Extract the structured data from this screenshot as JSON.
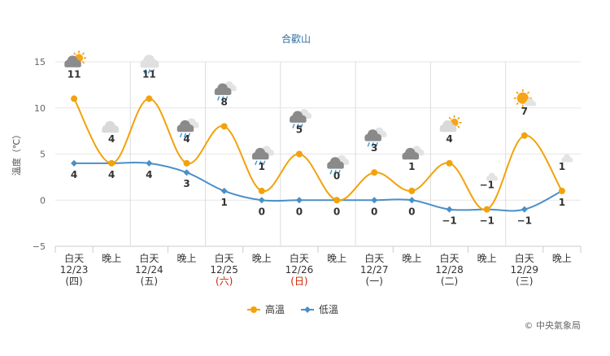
{
  "chart_data": {
    "type": "line",
    "title": "合歡山",
    "ylabel": "溫度（℃）",
    "ylim": [
      -5,
      15
    ],
    "yticks": [
      -5,
      0,
      5,
      10,
      15
    ],
    "grid": true,
    "legend_position": "bottom-center",
    "periods": [
      {
        "label": "白天",
        "date": "12/23",
        "weekday": "(四)",
        "weekday_color": "#333333",
        "icon": "cloud-sun-icon"
      },
      {
        "label": "晚上",
        "date": "",
        "weekday": "",
        "weekday_color": "#333333",
        "icon": "cloud-moon-icon"
      },
      {
        "label": "白天",
        "date": "12/24",
        "weekday": "(五)",
        "weekday_color": "#333333",
        "icon": "cloud-rain-sun-icon"
      },
      {
        "label": "晚上",
        "date": "",
        "weekday": "",
        "weekday_color": "#333333",
        "icon": "cloud-rain-icon"
      },
      {
        "label": "白天",
        "date": "12/25",
        "weekday": "(六)",
        "weekday_color": "#cc2200",
        "icon": "cloud-rain-icon"
      },
      {
        "label": "晚上",
        "date": "",
        "weekday": "",
        "weekday_color": "#333333",
        "icon": "cloud-rain-icon"
      },
      {
        "label": "白天",
        "date": "12/26",
        "weekday": "(日)",
        "weekday_color": "#cc2200",
        "icon": "cloud-rain-icon"
      },
      {
        "label": "晚上",
        "date": "",
        "weekday": "",
        "weekday_color": "#333333",
        "icon": "cloud-rain-icon"
      },
      {
        "label": "白天",
        "date": "12/27",
        "weekday": "(一)",
        "weekday_color": "#333333",
        "icon": "cloud-rain-icon"
      },
      {
        "label": "晚上",
        "date": "",
        "weekday": "",
        "weekday_color": "#333333",
        "icon": "cloud-icon"
      },
      {
        "label": "白天",
        "date": "12/28",
        "weekday": "(二)",
        "weekday_color": "#333333",
        "icon": "cloud-sun-icon"
      },
      {
        "label": "晚上",
        "date": "",
        "weekday": "",
        "weekday_color": "#333333",
        "icon": "moon-cloud-icon"
      },
      {
        "label": "白天",
        "date": "12/29",
        "weekday": "(三)",
        "weekday_color": "#333333",
        "icon": "sun-cloud-icon"
      },
      {
        "label": "晚上",
        "date": "",
        "weekday": "",
        "weekday_color": "#333333",
        "icon": "moon-cloud-icon"
      }
    ],
    "series": [
      {
        "name": "高溫",
        "color": "#f2a20c",
        "values": [
          11,
          4,
          11,
          4,
          8,
          1,
          5,
          0,
          3,
          1,
          4,
          -1,
          7,
          1
        ]
      },
      {
        "name": "低溫",
        "color": "#4a8fc7",
        "values": [
          4,
          4,
          4,
          3,
          1,
          0,
          0,
          0,
          0,
          0,
          -1,
          -1,
          -1,
          1
        ]
      }
    ]
  },
  "credit": "© 中央氣象局"
}
